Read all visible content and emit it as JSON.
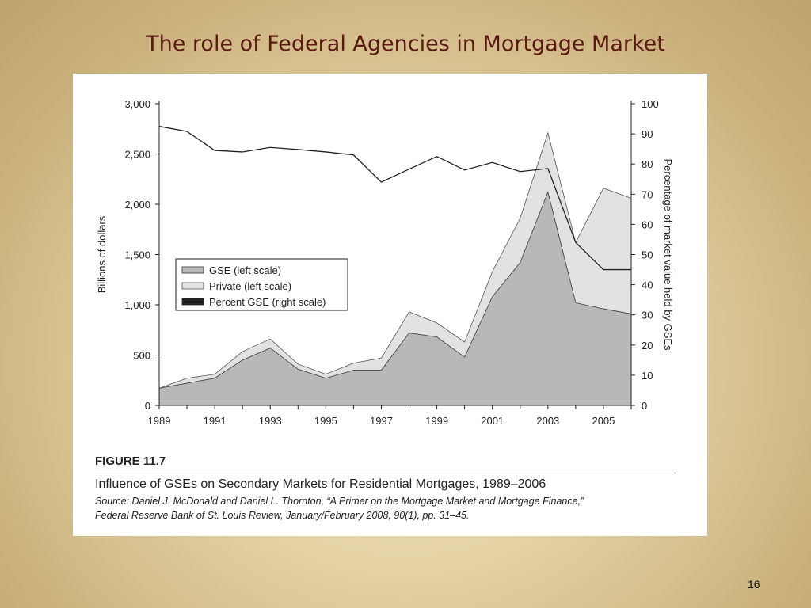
{
  "slide": {
    "title": "The role of Federal Agencies in Mortgage Market",
    "page_number": "16"
  },
  "figure": {
    "label": "FIGURE 11.7",
    "caption": "Influence of GSEs on Secondary Markets for Residential Mortgages, 1989–2006",
    "source_line1": "Source: Daniel J. McDonald and Daniel L. Thornton, “A Primer on the Mortgage Market and Mortgage Finance,”",
    "source_line2": "Federal Reserve Bank of St. Louis Review, January/February 2008, 90(1), pp. 31–45."
  },
  "chart_data": {
    "type": "area",
    "x": [
      1989,
      1990,
      1991,
      1992,
      1993,
      1994,
      1995,
      1996,
      1997,
      1998,
      1999,
      2000,
      2001,
      2002,
      2003,
      2004,
      2005,
      2006
    ],
    "xticks": [
      "1989",
      "1991",
      "1993",
      "1995",
      "1997",
      "1999",
      "2001",
      "2003",
      "2005"
    ],
    "ylabel": "Billions of dollars",
    "ylim": [
      0,
      3000
    ],
    "yticks": [
      "0",
      "500",
      "1,000",
      "1,500",
      "2,000",
      "2,500",
      "3,000"
    ],
    "y2label": "Percentage of market value held by GSEs",
    "y2lim": [
      0,
      100
    ],
    "y2ticks": [
      "0",
      "10",
      "20",
      "30",
      "40",
      "50",
      "60",
      "70",
      "80",
      "90",
      "100"
    ],
    "legend_position": "center-left",
    "series": [
      {
        "name": "GSE (left scale)",
        "kind": "area",
        "axis": "left",
        "color": "#b8b8b8",
        "values": [
          170,
          220,
          270,
          450,
          570,
          360,
          270,
          350,
          350,
          720,
          680,
          480,
          1080,
          1420,
          2120,
          1020,
          960,
          910
        ]
      },
      {
        "name": "Private (left scale)",
        "kind": "stacked-area",
        "axis": "left",
        "color": "#e2e2e2",
        "values": [
          0,
          50,
          40,
          85,
          90,
          50,
          40,
          70,
          120,
          210,
          140,
          150,
          250,
          440,
          590,
          600,
          1200,
          1150
        ]
      },
      {
        "name": "Percent GSE (right scale)",
        "kind": "line",
        "axis": "right",
        "color": "#222222",
        "values": [
          92.5,
          90.8,
          84.5,
          84,
          85.5,
          84.8,
          84,
          83,
          74,
          78.3,
          82.5,
          78,
          80.5,
          77.5,
          78.5,
          54,
          45,
          45
        ]
      }
    ]
  }
}
